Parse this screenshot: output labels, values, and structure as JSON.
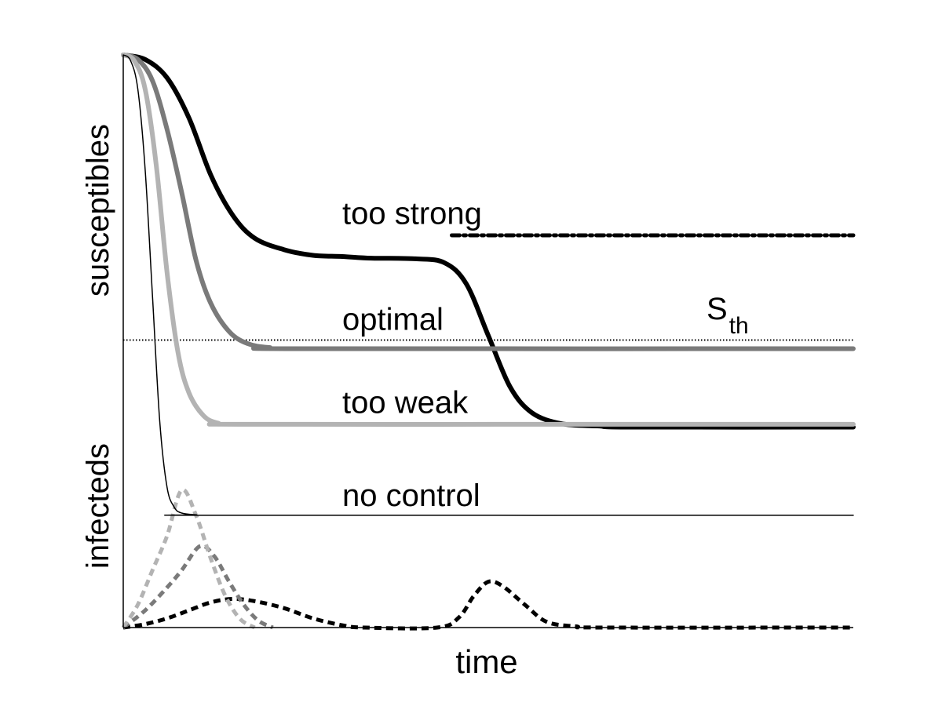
{
  "chart_data": {
    "type": "line",
    "title": "",
    "xlabel": "time",
    "ylabel_top": "susceptibles",
    "ylabel_bottom": "infecteds",
    "xlim": [
      0,
      1
    ],
    "ylim": [
      0,
      1
    ],
    "threshold": {
      "label": "S",
      "subscript": "th",
      "y": 0.502
    },
    "series": [
      {
        "name": "too strong",
        "kind": "susceptibles",
        "color": "#000000",
        "points": [
          [
            0,
            1
          ],
          [
            0.03,
            0.992
          ],
          [
            0.06,
            0.96
          ],
          [
            0.09,
            0.89
          ],
          [
            0.12,
            0.79
          ],
          [
            0.15,
            0.72
          ],
          [
            0.18,
            0.68
          ],
          [
            0.22,
            0.66
          ],
          [
            0.26,
            0.65
          ],
          [
            0.3,
            0.648
          ],
          [
            0.34,
            0.645
          ],
          [
            0.4,
            0.644
          ],
          [
            0.44,
            0.637
          ],
          [
            0.47,
            0.6
          ],
          [
            0.5,
            0.51
          ],
          [
            0.53,
            0.42
          ],
          [
            0.56,
            0.375
          ],
          [
            0.6,
            0.356
          ],
          [
            0.65,
            0.352
          ],
          [
            0.7,
            0.35
          ],
          [
            1,
            0.35
          ]
        ]
      },
      {
        "name": "too strong (continuation)",
        "kind": "dash-dot",
        "color": "#000000",
        "points": [
          [
            0.45,
            0.685
          ],
          [
            1,
            0.685
          ]
        ]
      },
      {
        "name": "optimal",
        "kind": "susceptibles",
        "color": "#7a7a7a",
        "points": [
          [
            0,
            1
          ],
          [
            0.02,
            0.992
          ],
          [
            0.04,
            0.955
          ],
          [
            0.06,
            0.87
          ],
          [
            0.08,
            0.76
          ],
          [
            0.1,
            0.64
          ],
          [
            0.12,
            0.566
          ],
          [
            0.145,
            0.517
          ],
          [
            0.17,
            0.496
          ],
          [
            0.2,
            0.489
          ],
          [
            0.25,
            0.487
          ],
          [
            1,
            0.487
          ]
        ]
      },
      {
        "name": "too weak",
        "kind": "susceptibles",
        "color": "#b3b3b3",
        "points": [
          [
            0,
            1
          ],
          [
            0.015,
            0.99
          ],
          [
            0.03,
            0.94
          ],
          [
            0.045,
            0.81
          ],
          [
            0.06,
            0.62
          ],
          [
            0.075,
            0.48
          ],
          [
            0.09,
            0.41
          ],
          [
            0.11,
            0.37
          ],
          [
            0.13,
            0.357
          ],
          [
            0.16,
            0.355
          ],
          [
            0.6,
            0.355
          ],
          [
            1,
            0.355
          ]
        ]
      },
      {
        "name": "no control",
        "kind": "susceptibles",
        "color": "#000000",
        "points": [
          [
            0,
            1
          ],
          [
            0.01,
            0.99
          ],
          [
            0.02,
            0.94
          ],
          [
            0.03,
            0.8
          ],
          [
            0.04,
            0.58
          ],
          [
            0.05,
            0.36
          ],
          [
            0.06,
            0.245
          ],
          [
            0.07,
            0.21
          ],
          [
            0.08,
            0.2
          ],
          [
            0.1,
            0.197
          ],
          [
            0.13,
            0.196
          ],
          [
            1,
            0.196
          ]
        ]
      },
      {
        "name": "too strong infecteds",
        "kind": "infecteds",
        "color": "#000000",
        "points": [
          [
            0,
            0
          ],
          [
            0.03,
            0.006
          ],
          [
            0.06,
            0.016
          ],
          [
            0.09,
            0.03
          ],
          [
            0.12,
            0.044
          ],
          [
            0.15,
            0.05
          ],
          [
            0.18,
            0.046
          ],
          [
            0.22,
            0.034
          ],
          [
            0.26,
            0.016
          ],
          [
            0.3,
            0.004
          ],
          [
            0.33,
            0
          ],
          [
            0.43,
            0
          ],
          [
            0.46,
            0.018
          ],
          [
            0.48,
            0.055
          ],
          [
            0.5,
            0.08
          ],
          [
            0.52,
            0.072
          ],
          [
            0.55,
            0.04
          ],
          [
            0.58,
            0.01
          ],
          [
            0.62,
            0.002
          ],
          [
            0.66,
            0
          ],
          [
            1,
            0
          ]
        ]
      },
      {
        "name": "optimal infecteds",
        "kind": "infecteds",
        "color": "#7a7a7a",
        "points": [
          [
            0,
            0
          ],
          [
            0.03,
            0.03
          ],
          [
            0.06,
            0.07
          ],
          [
            0.08,
            0.1
          ],
          [
            0.105,
            0.142
          ],
          [
            0.125,
            0.124
          ],
          [
            0.145,
            0.08
          ],
          [
            0.165,
            0.04
          ],
          [
            0.185,
            0.012
          ],
          [
            0.205,
            0
          ]
        ]
      },
      {
        "name": "too weak infecteds",
        "kind": "infecteds",
        "color": "#b3b3b3",
        "points": [
          [
            0,
            0
          ],
          [
            0.02,
            0.04
          ],
          [
            0.04,
            0.1
          ],
          [
            0.06,
            0.16
          ],
          [
            0.08,
            0.24
          ],
          [
            0.1,
            0.195
          ],
          [
            0.12,
            0.12
          ],
          [
            0.14,
            0.055
          ],
          [
            0.16,
            0.015
          ],
          [
            0.18,
            0
          ]
        ]
      }
    ],
    "curve_labels": [
      {
        "text": "too strong",
        "x": 0.3,
        "y": 0.705
      },
      {
        "text": "optimal",
        "x": 0.3,
        "y": 0.52
      },
      {
        "text": "too weak",
        "x": 0.3,
        "y": 0.375
      },
      {
        "text": "no control",
        "x": 0.3,
        "y": 0.212
      }
    ]
  }
}
